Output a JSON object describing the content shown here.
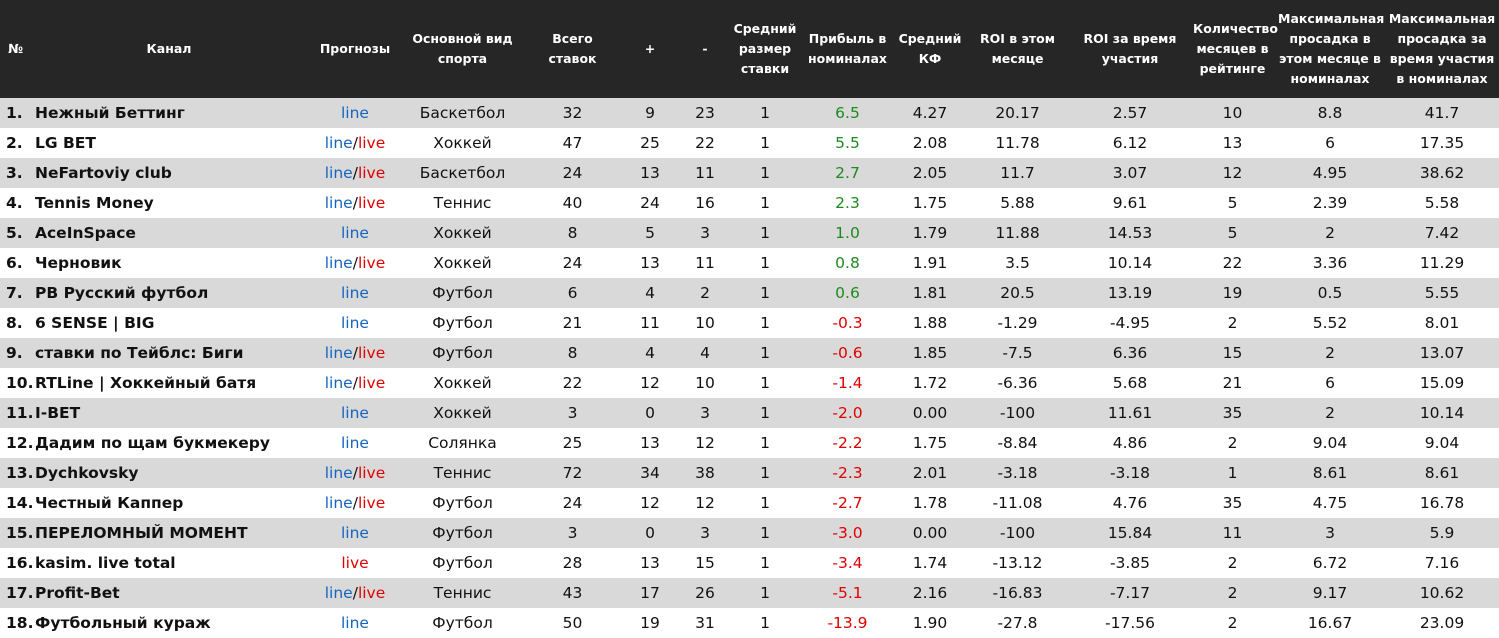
{
  "table": {
    "headers": [
      "№",
      "Канал",
      "Прогнозы",
      "Основной вид спорта",
      "Всего ставок",
      "+",
      "-",
      "Средний размер ставки",
      "Прибыль в номиналах",
      "Средний КФ",
      "ROI в этом месяце",
      "ROI за время участия",
      "Количество месяцев в рейтинге",
      "Максимальная просадка в этом месяце в номиналах",
      "Максимальная просадка за время участия в номиналах"
    ],
    "rows": [
      [
        "1.",
        "Нежный Беттинг",
        [
          "line"
        ],
        "Баскетбол",
        "32",
        "9",
        "23",
        "1",
        "6.5",
        "4.27",
        "20.17",
        "2.57",
        "10",
        "8.8",
        "41.7"
      ],
      [
        "2.",
        "LG BET",
        [
          "line",
          "/",
          "live"
        ],
        "Хоккей",
        "47",
        "25",
        "22",
        "1",
        "5.5",
        "2.08",
        "11.78",
        "6.12",
        "13",
        "6",
        "17.35"
      ],
      [
        "3.",
        "NeFartoviy club",
        [
          "line",
          "/",
          "live"
        ],
        "Баскетбол",
        "24",
        "13",
        "11",
        "1",
        "2.7",
        "2.05",
        "11.7",
        "3.07",
        "12",
        "4.95",
        "38.62"
      ],
      [
        "4.",
        "Tennis Money",
        [
          "line",
          "/",
          "live"
        ],
        "Теннис",
        "40",
        "24",
        "16",
        "1",
        "2.3",
        "1.75",
        "5.88",
        "9.61",
        "5",
        "2.39",
        "5.58"
      ],
      [
        "5.",
        "AceInSpace",
        [
          "line"
        ],
        "Хоккей",
        "8",
        "5",
        "3",
        "1",
        "1.0",
        "1.79",
        "11.88",
        "14.53",
        "5",
        "2",
        "7.42"
      ],
      [
        "6.",
        "Черновик",
        [
          "line",
          "/",
          "live"
        ],
        "Хоккей",
        "24",
        "13",
        "11",
        "1",
        "0.8",
        "1.91",
        "3.5",
        "10.14",
        "22",
        "3.36",
        "11.29"
      ],
      [
        "7.",
        "PB Русский футбол",
        [
          "line"
        ],
        "Футбол",
        "6",
        "4",
        "2",
        "1",
        "0.6",
        "1.81",
        "20.5",
        "13.19",
        "19",
        "0.5",
        "5.55"
      ],
      [
        "8.",
        "6 SENSE | BIG",
        [
          "line"
        ],
        "Футбол",
        "21",
        "11",
        "10",
        "1",
        "-0.3",
        "1.88",
        "-1.29",
        "-4.95",
        "2",
        "5.52",
        "8.01"
      ],
      [
        "9.",
        "ставки по Тейблс: Биги",
        [
          "line",
          "/",
          "live"
        ],
        "Футбол",
        "8",
        "4",
        "4",
        "1",
        "-0.6",
        "1.85",
        "-7.5",
        "6.36",
        "15",
        "2",
        "13.07"
      ],
      [
        "10.",
        "RTLine | Хоккейный батя",
        [
          "line",
          "/",
          "live"
        ],
        "Хоккей",
        "22",
        "12",
        "10",
        "1",
        "-1.4",
        "1.72",
        "-6.36",
        "5.68",
        "21",
        "6",
        "15.09"
      ],
      [
        "11.",
        "I-BET",
        [
          "line"
        ],
        "Хоккей",
        "3",
        "0",
        "3",
        "1",
        "-2.0",
        "0.00",
        "-100",
        "11.61",
        "35",
        "2",
        "10.14"
      ],
      [
        "12.",
        "Дадим по щам букмекеру",
        [
          "line"
        ],
        "Солянка",
        "25",
        "13",
        "12",
        "1",
        "-2.2",
        "1.75",
        "-8.84",
        "4.86",
        "2",
        "9.04",
        "9.04"
      ],
      [
        "13.",
        "Dychkovsky",
        [
          "line",
          "/",
          "live"
        ],
        "Теннис",
        "72",
        "34",
        "38",
        "1",
        "-2.3",
        "2.01",
        "-3.18",
        "-3.18",
        "1",
        "8.61",
        "8.61"
      ],
      [
        "14.",
        "Честный Каппер",
        [
          "line",
          "/",
          "live"
        ],
        "Футбол",
        "24",
        "12",
        "12",
        "1",
        "-2.7",
        "1.78",
        "-11.08",
        "4.76",
        "35",
        "4.75",
        "16.78"
      ],
      [
        "15.",
        "ПЕРЕЛОМНЫЙ МОМЕНТ",
        [
          "line"
        ],
        "Футбол",
        "3",
        "0",
        "3",
        "1",
        "-3.0",
        "0.00",
        "-100",
        "15.84",
        "11",
        "3",
        "5.9"
      ],
      [
        "16.",
        "kasim. live total",
        [
          "live"
        ],
        "Футбол",
        "28",
        "13",
        "15",
        "1",
        "-3.4",
        "1.74",
        "-13.12",
        "-3.85",
        "2",
        "6.72",
        "7.16"
      ],
      [
        "17.",
        "Profit-Bet",
        [
          "line",
          "/",
          "live"
        ],
        "Теннис",
        "43",
        "17",
        "26",
        "1",
        "-5.1",
        "2.16",
        "-16.83",
        "-7.17",
        "2",
        "9.17",
        "10.62"
      ],
      [
        "18.",
        "Футбольный кураж",
        [
          "line"
        ],
        "Футбол",
        "50",
        "19",
        "31",
        "1",
        "-13.9",
        "1.90",
        "-27.8",
        "-17.56",
        "2",
        "16.67",
        "23.09"
      ]
    ]
  }
}
